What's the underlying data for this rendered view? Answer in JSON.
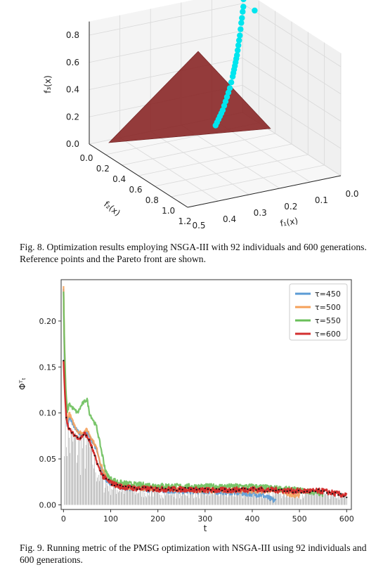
{
  "captions": {
    "fig8": "Fig. 8. Optimization results employing NSGA-III with 92 individuals and 600 generations. Reference points and the Pareto front are shown.",
    "fig9": "Fig. 9. Running metric of the PMSG optimization with NSGA-III using 92 individuals and 600 generations."
  },
  "colors": {
    "surface": "#8b2a2a",
    "pareto": "#00e5ee",
    "s450": "#5b9bd5",
    "s500": "#f5a15a",
    "s550": "#6abf5a",
    "s600": "#d32f2f",
    "spikes": "#555555"
  },
  "chart_data": [
    {
      "type": "scatter",
      "subtype": "3d",
      "title": "",
      "axes": {
        "f1": {
          "label": "f₁(x)",
          "ticks": [
            "0.0",
            "0.1",
            "0.2",
            "0.3",
            "0.4",
            "0.5"
          ],
          "range": [
            0.5,
            0.0
          ]
        },
        "f2": {
          "label": "f₂(x)",
          "ticks": [
            "0.0",
            "0.2",
            "0.4",
            "0.6",
            "0.8",
            "1.0",
            "1.2"
          ],
          "range": [
            0.0,
            1.2
          ]
        },
        "f3": {
          "label": "f₃(x)",
          "ticks": [
            "0.0",
            "0.2",
            "0.4",
            "0.6",
            "0.8"
          ],
          "range": [
            0.0,
            0.9
          ]
        }
      },
      "surface": "reference points (triangular plane)",
      "pareto_front": [
        [
          0.0,
          0.03,
          0.86
        ],
        [
          0.002,
          0.02,
          0.84
        ],
        [
          0.005,
          0.03,
          0.79
        ],
        [
          0.01,
          0.04,
          0.76
        ],
        [
          0.015,
          0.05,
          0.72
        ],
        [
          0.02,
          0.06,
          0.69
        ],
        [
          0.025,
          0.07,
          0.65
        ],
        [
          0.03,
          0.08,
          0.61
        ],
        [
          0.035,
          0.09,
          0.58
        ],
        [
          0.04,
          0.1,
          0.55
        ],
        [
          0.045,
          0.11,
          0.52
        ],
        [
          0.05,
          0.12,
          0.49
        ],
        [
          0.055,
          0.13,
          0.47
        ],
        [
          0.06,
          0.14,
          0.45
        ],
        [
          0.065,
          0.15,
          0.43
        ],
        [
          0.07,
          0.16,
          0.41
        ],
        [
          0.075,
          0.17,
          0.39
        ],
        [
          0.08,
          0.18,
          0.37
        ],
        [
          0.09,
          0.2,
          0.34
        ],
        [
          0.1,
          0.22,
          0.31
        ],
        [
          0.11,
          0.24,
          0.29
        ],
        [
          0.12,
          0.26,
          0.27
        ],
        [
          0.13,
          0.28,
          0.25
        ],
        [
          0.14,
          0.3,
          0.23
        ],
        [
          0.15,
          0.32,
          0.21
        ],
        [
          0.16,
          0.34,
          0.2
        ],
        [
          0.17,
          0.36,
          0.19
        ],
        [
          0.18,
          0.38,
          0.18
        ],
        [
          0.19,
          0.4,
          0.17
        ],
        [
          0.2,
          0.42,
          0.16
        ],
        [
          -0.04,
          0.0,
          0.73
        ]
      ]
    },
    {
      "type": "line",
      "title": "",
      "xlabel": "t",
      "ylabel": "Φᵀₜ",
      "xlim": [
        -5,
        610
      ],
      "ylim": [
        -0.005,
        0.245
      ],
      "xticks": [
        0,
        100,
        200,
        300,
        400,
        500,
        600
      ],
      "yticks": [
        0.0,
        0.05,
        0.1,
        0.15,
        0.2
      ],
      "ytick_labels": [
        "0.00",
        "0.05",
        "0.10",
        "0.15",
        "0.20"
      ],
      "legend": "top-right",
      "series": [
        {
          "name": "τ=450",
          "end": 450,
          "points": [
            [
              0,
              0.235
            ],
            [
              2,
              0.16
            ],
            [
              5,
              0.11
            ],
            [
              8,
              0.085
            ],
            [
              12,
              0.095
            ],
            [
              20,
              0.088
            ],
            [
              30,
              0.08
            ],
            [
              40,
              0.075
            ],
            [
              50,
              0.08
            ],
            [
              60,
              0.07
            ],
            [
              70,
              0.06
            ],
            [
              80,
              0.04
            ],
            [
              90,
              0.028
            ],
            [
              100,
              0.024
            ],
            [
              120,
              0.02
            ],
            [
              150,
              0.018
            ],
            [
              200,
              0.016
            ],
            [
              250,
              0.015
            ],
            [
              300,
              0.015
            ],
            [
              350,
              0.014
            ],
            [
              400,
              0.012
            ],
            [
              420,
              0.011
            ],
            [
              440,
              0.006
            ],
            [
              450,
              0.004
            ]
          ]
        },
        {
          "name": "τ=500",
          "end": 500,
          "points": [
            [
              0,
              0.238
            ],
            [
              2,
              0.17
            ],
            [
              5,
              0.12
            ],
            [
              8,
              0.09
            ],
            [
              12,
              0.1
            ],
            [
              20,
              0.09
            ],
            [
              30,
              0.08
            ],
            [
              40,
              0.078
            ],
            [
              50,
              0.082
            ],
            [
              60,
              0.072
            ],
            [
              70,
              0.062
            ],
            [
              80,
              0.042
            ],
            [
              90,
              0.03
            ],
            [
              100,
              0.025
            ],
            [
              120,
              0.021
            ],
            [
              150,
              0.019
            ],
            [
              200,
              0.018
            ],
            [
              250,
              0.017
            ],
            [
              300,
              0.016
            ],
            [
              350,
              0.016
            ],
            [
              400,
              0.015
            ],
            [
              450,
              0.016
            ],
            [
              480,
              0.012
            ],
            [
              500,
              0.01
            ]
          ]
        },
        {
          "name": "τ=550",
          "end": 550,
          "points": [
            [
              0,
              0.232
            ],
            [
              2,
              0.175
            ],
            [
              5,
              0.125
            ],
            [
              8,
              0.1
            ],
            [
              12,
              0.11
            ],
            [
              20,
              0.105
            ],
            [
              30,
              0.1
            ],
            [
              40,
              0.11
            ],
            [
              50,
              0.115
            ],
            [
              55,
              0.1
            ],
            [
              60,
              0.095
            ],
            [
              70,
              0.085
            ],
            [
              80,
              0.06
            ],
            [
              90,
              0.035
            ],
            [
              100,
              0.028
            ],
            [
              120,
              0.024
            ],
            [
              150,
              0.022
            ],
            [
              200,
              0.021
            ],
            [
              250,
              0.02
            ],
            [
              300,
              0.02
            ],
            [
              350,
              0.02
            ],
            [
              400,
              0.02
            ],
            [
              450,
              0.018
            ],
            [
              500,
              0.016
            ],
            [
              550,
              0.012
            ]
          ]
        },
        {
          "name": "τ=600",
          "end": 600,
          "points": [
            [
              0,
              0.157
            ],
            [
              3,
              0.12
            ],
            [
              6,
              0.095
            ],
            [
              10,
              0.085
            ],
            [
              15,
              0.08
            ],
            [
              25,
              0.075
            ],
            [
              35,
              0.072
            ],
            [
              45,
              0.078
            ],
            [
              55,
              0.07
            ],
            [
              65,
              0.055
            ],
            [
              75,
              0.04
            ],
            [
              85,
              0.03
            ],
            [
              100,
              0.024
            ],
            [
              120,
              0.02
            ],
            [
              150,
              0.018
            ],
            [
              200,
              0.017
            ],
            [
              250,
              0.017
            ],
            [
              300,
              0.016
            ],
            [
              350,
              0.016
            ],
            [
              400,
              0.017
            ],
            [
              450,
              0.016
            ],
            [
              500,
              0.015
            ],
            [
              550,
              0.015
            ],
            [
              580,
              0.012
            ],
            [
              600,
              0.01
            ]
          ]
        }
      ],
      "spikes": "thin grey vertical lines at each generation from the baseline to the running metric"
    }
  ]
}
